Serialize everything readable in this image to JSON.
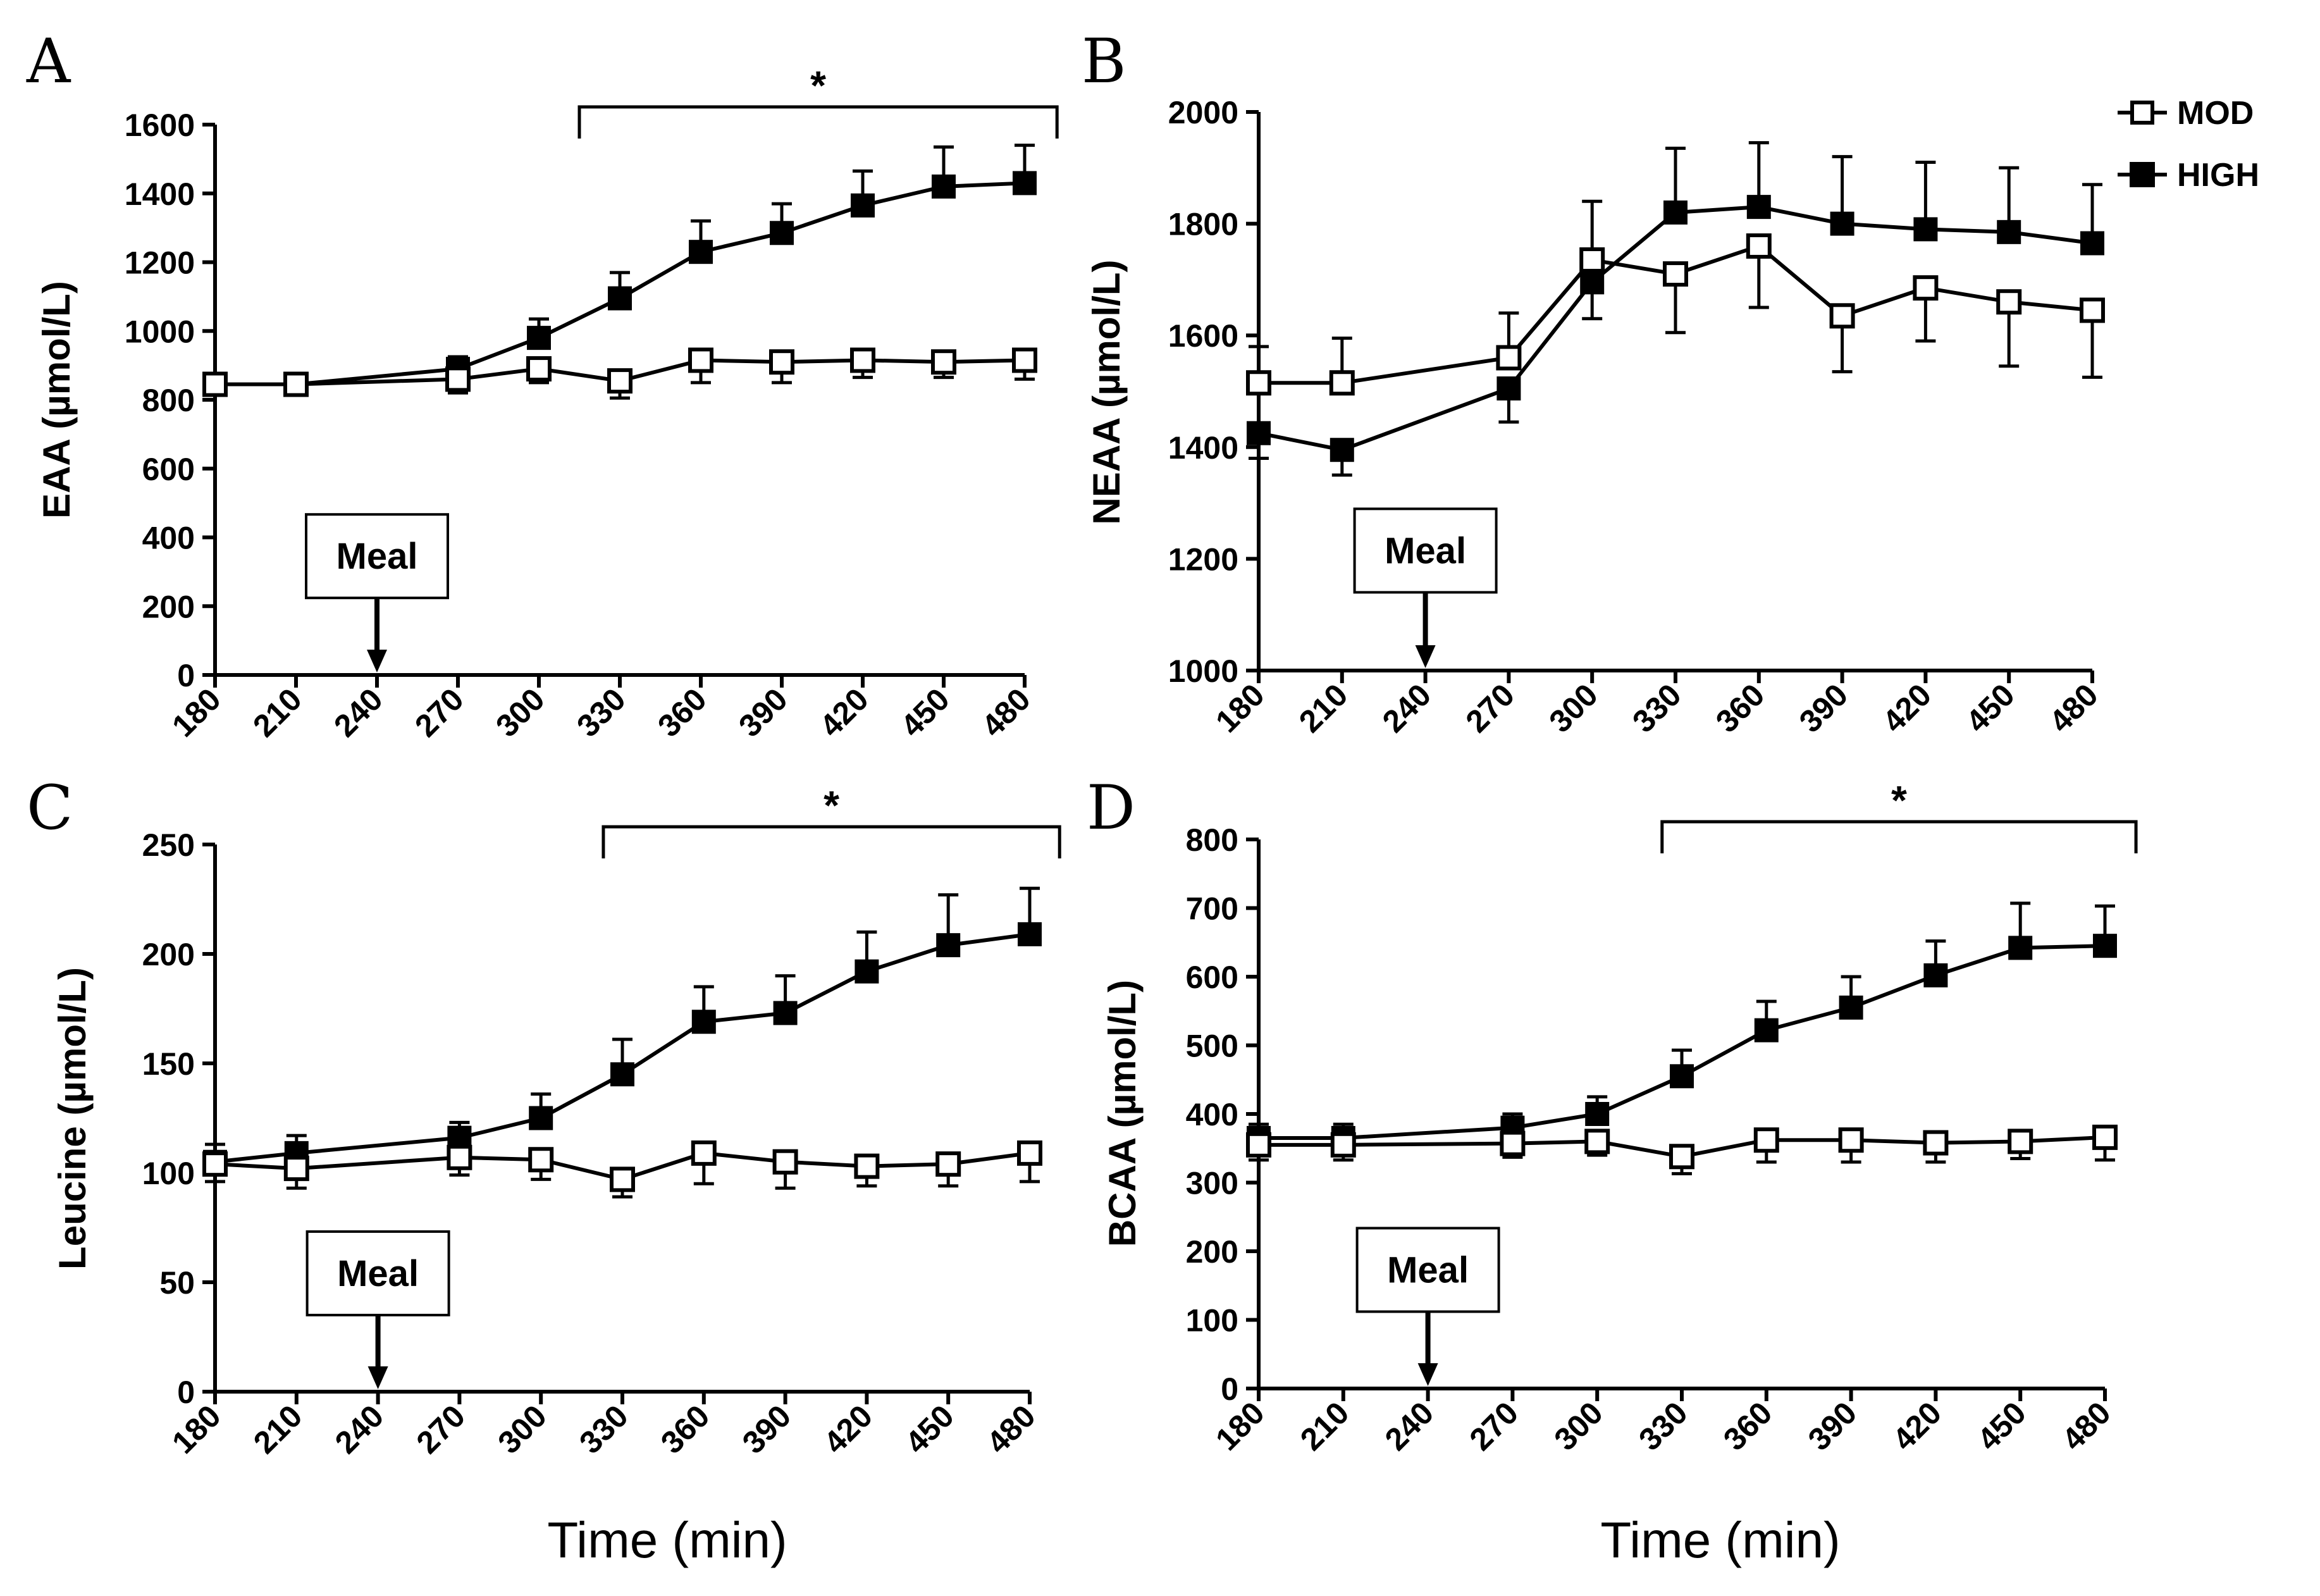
{
  "figure": {
    "shared_xlabel": "Time (min)",
    "legend": [
      {
        "name": "MOD",
        "marker": "open-square"
      },
      {
        "name": "HIGH",
        "marker": "filled-square"
      }
    ],
    "meal_label": "Meal",
    "colors": {
      "mod_fill": "#ffffff",
      "high_fill": "#000000",
      "stroke": "#000000"
    }
  },
  "chart_data": [
    {
      "panel": "A",
      "type": "line",
      "ylabel": "EAA (µmol/L)",
      "xlabel": "",
      "x": [
        180,
        210,
        270,
        300,
        330,
        360,
        390,
        420,
        450,
        480
      ],
      "xticks": [
        180,
        210,
        240,
        270,
        300,
        330,
        360,
        390,
        420,
        450,
        480
      ],
      "ylim": [
        0,
        1600
      ],
      "yticks": [
        0,
        200,
        400,
        600,
        800,
        1000,
        1200,
        1400,
        1600
      ],
      "meal_x": 240,
      "significance": {
        "label": "*",
        "x_start": 315,
        "x_end": 492
      },
      "series": [
        {
          "name": "MOD",
          "values": [
            845,
            845,
            860,
            890,
            855,
            915,
            910,
            915,
            910,
            915
          ],
          "errors": [
            30,
            30,
            40,
            40,
            50,
            65,
            60,
            50,
            45,
            55
          ]
        },
        {
          "name": "HIGH",
          "values": [
            845,
            845,
            890,
            980,
            1095,
            1230,
            1285,
            1365,
            1420,
            1430
          ],
          "errors": [
            30,
            30,
            35,
            55,
            75,
            90,
            85,
            100,
            115,
            110
          ]
        }
      ]
    },
    {
      "panel": "B",
      "type": "line",
      "ylabel": "NEAA (µmol/L)",
      "xlabel": "",
      "x": [
        180,
        210,
        270,
        300,
        330,
        360,
        390,
        420,
        450,
        480
      ],
      "xticks": [
        180,
        210,
        240,
        270,
        300,
        330,
        360,
        390,
        420,
        450,
        480
      ],
      "ylim": [
        1000,
        2000
      ],
      "yticks": [
        1000,
        1200,
        1400,
        1600,
        1800,
        2000
      ],
      "meal_x": 240,
      "significance": null,
      "series": [
        {
          "name": "MOD",
          "values": [
            1515,
            1515,
            1560,
            1735,
            1710,
            1760,
            1635,
            1685,
            1660,
            1645
          ],
          "errors": [
            65,
            80,
            80,
            105,
            105,
            110,
            100,
            95,
            115,
            120
          ]
        },
        {
          "name": "HIGH",
          "values": [
            1425,
            1395,
            1505,
            1695,
            1820,
            1830,
            1800,
            1790,
            1785,
            1765
          ],
          "errors": [
            45,
            45,
            60,
            65,
            115,
            115,
            120,
            120,
            115,
            105
          ]
        }
      ]
    },
    {
      "panel": "C",
      "type": "line",
      "ylabel": "Leucine (µmol/L)",
      "xlabel": "Time (min)",
      "x": [
        180,
        210,
        270,
        300,
        330,
        360,
        390,
        420,
        450,
        480
      ],
      "xticks": [
        180,
        210,
        240,
        270,
        300,
        330,
        360,
        390,
        420,
        450,
        480
      ],
      "ylim": [
        0,
        250
      ],
      "yticks": [
        0,
        50,
        100,
        150,
        200,
        250
      ],
      "meal_x": 240,
      "significance": {
        "label": "*",
        "x_start": 323,
        "x_end": 491
      },
      "series": [
        {
          "name": "MOD",
          "values": [
            104,
            102,
            107,
            106,
            97,
            109,
            105,
            103,
            104,
            109
          ],
          "errors": [
            8,
            9,
            8,
            9,
            8,
            14,
            12,
            9,
            10,
            13
          ]
        },
        {
          "name": "HIGH",
          "values": [
            105,
            109,
            116,
            125,
            145,
            169,
            173,
            192,
            204,
            209
          ],
          "errors": [
            8,
            8,
            7,
            11,
            16,
            16,
            17,
            18,
            23,
            21
          ]
        }
      ]
    },
    {
      "panel": "D",
      "type": "line",
      "ylabel": "BCAA (µmol/L)",
      "xlabel": "Time (min)",
      "x": [
        180,
        210,
        270,
        300,
        330,
        360,
        390,
        420,
        450,
        480
      ],
      "xticks": [
        180,
        210,
        240,
        270,
        300,
        330,
        360,
        390,
        420,
        450,
        480
      ],
      "ylim": [
        0,
        800
      ],
      "yticks": [
        0,
        100,
        200,
        300,
        400,
        500,
        600,
        700,
        800
      ],
      "meal_x": 240,
      "significance": {
        "label": "*",
        "x_start": 323,
        "x_end": 491
      },
      "series": [
        {
          "name": "MOD",
          "values": [
            355,
            355,
            357,
            360,
            338,
            362,
            362,
            358,
            360,
            366
          ],
          "errors": [
            22,
            22,
            20,
            20,
            25,
            32,
            32,
            28,
            25,
            33
          ]
        },
        {
          "name": "HIGH",
          "values": [
            365,
            365,
            380,
            400,
            455,
            522,
            555,
            602,
            642,
            645
          ],
          "errors": [
            20,
            20,
            20,
            25,
            38,
            42,
            45,
            50,
            65,
            58
          ]
        }
      ]
    }
  ]
}
